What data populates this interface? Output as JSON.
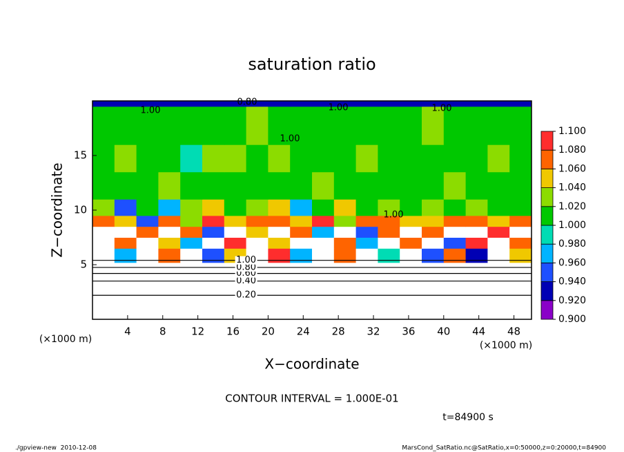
{
  "chart_data": {
    "type": "contour",
    "title": "saturation ratio",
    "xlabel": "X−coordinate",
    "ylabel": "Z−coordinate",
    "x_unit": "(×1000 m)",
    "y_unit": "(×1000 m)",
    "xlim": [
      0,
      50
    ],
    "ylim": [
      0,
      20
    ],
    "xticks": [
      4,
      8,
      12,
      16,
      20,
      24,
      28,
      32,
      36,
      40,
      44,
      48
    ],
    "yticks": [
      5,
      10,
      15
    ],
    "field": {
      "x_edges": [
        0,
        2.5,
        5,
        7.5,
        10,
        12.5,
        15,
        17.5,
        20,
        22.5,
        25,
        27.5,
        30,
        32.5,
        35,
        37.5,
        40,
        42.5,
        45,
        47.5,
        50
      ],
      "z_edges": [
        0,
        1.5,
        3,
        4.5,
        5.2,
        6.5,
        7.5,
        8.5,
        9.5,
        11,
        13.5,
        16,
        19.5,
        20
      ],
      "values": [
        [
          0.1,
          0.1,
          0.1,
          0.1,
          0.1,
          0.1,
          0.1,
          0.1,
          0.1,
          0.1,
          0.1,
          0.1,
          0.1,
          0.1,
          0.1,
          0.1,
          0.1,
          0.1,
          0.1,
          0.1
        ],
        [
          0.3,
          0.3,
          0.3,
          0.3,
          0.3,
          0.3,
          0.3,
          0.3,
          0.3,
          0.3,
          0.3,
          0.3,
          0.3,
          0.3,
          0.3,
          0.3,
          0.3,
          0.3,
          0.3,
          0.3
        ],
        [
          0.55,
          0.55,
          0.55,
          0.55,
          0.55,
          0.55,
          0.55,
          0.55,
          0.55,
          0.55,
          0.55,
          0.55,
          0.55,
          0.55,
          0.55,
          0.55,
          0.55,
          0.55,
          0.55,
          0.55
        ],
        [
          0.85,
          0.85,
          0.85,
          0.85,
          0.85,
          0.85,
          0.85,
          0.85,
          0.85,
          0.85,
          0.85,
          0.85,
          0.85,
          0.85,
          0.85,
          0.85,
          0.85,
          0.85,
          0.85,
          0.85
        ],
        [
          1.12,
          0.97,
          1.12,
          1.07,
          1.12,
          0.95,
          1.05,
          1.12,
          1.08,
          0.96,
          1.12,
          1.06,
          1.12,
          0.98,
          1.12,
          0.95,
          1.07,
          0.93,
          1.12,
          1.05
        ],
        [
          1.12,
          1.07,
          1.12,
          1.05,
          0.97,
          1.12,
          1.08,
          1.12,
          1.04,
          1.12,
          1.12,
          1.07,
          0.96,
          1.12,
          1.06,
          1.12,
          0.94,
          1.08,
          1.12,
          1.07
        ],
        [
          1.12,
          1.12,
          1.06,
          1.12,
          1.07,
          0.95,
          1.12,
          1.05,
          1.12,
          1.07,
          0.97,
          1.12,
          0.95,
          1.06,
          1.12,
          1.07,
          1.12,
          1.12,
          1.08,
          1.12
        ],
        [
          1.07,
          1.05,
          0.95,
          1.06,
          1.03,
          1.08,
          1.04,
          1.06,
          1.07,
          1.05,
          1.08,
          1.03,
          1.06,
          1.07,
          1.05,
          1.04,
          1.07,
          1.06,
          1.05,
          1.07
        ],
        [
          1.03,
          0.95,
          1.01,
          0.96,
          1.02,
          1.04,
          1.01,
          1.02,
          1.05,
          0.97,
          1.01,
          1.04,
          1.01,
          1.03,
          1.01,
          1.02,
          1.01,
          1.03,
          1.01,
          1.01
        ],
        [
          1.01,
          1.01,
          1.01,
          1.03,
          1.01,
          1.01,
          1.01,
          1.01,
          1.01,
          1.01,
          1.03,
          1.01,
          1.01,
          1.01,
          1.01,
          1.01,
          1.03,
          1.01,
          1.01,
          1.01
        ],
        [
          1.01,
          1.03,
          1.01,
          1.01,
          0.99,
          1.03,
          1.03,
          1.01,
          1.03,
          1.01,
          1.01,
          1.01,
          1.03,
          1.01,
          1.01,
          1.01,
          1.01,
          1.01,
          1.03,
          1.01
        ],
        [
          1.01,
          1.01,
          1.01,
          1.01,
          1.01,
          1.01,
          1.01,
          1.03,
          1.01,
          1.01,
          1.01,
          1.01,
          1.01,
          1.01,
          1.01,
          1.03,
          1.01,
          1.01,
          1.01,
          1.01
        ],
        [
          0.93,
          0.93,
          0.93,
          0.93,
          0.93,
          0.93,
          0.93,
          0.93,
          0.93,
          0.93,
          0.93,
          0.93,
          0.93,
          0.93,
          0.93,
          0.93,
          0.93,
          0.93,
          0.93,
          0.93
        ]
      ]
    },
    "levels": [
      {
        "value": 0.9,
        "label": "0.900"
      },
      {
        "value": 0.92,
        "label": "0.920"
      },
      {
        "value": 0.94,
        "label": "0.940"
      },
      {
        "value": 0.96,
        "label": "0.960"
      },
      {
        "value": 0.98,
        "label": "0.980"
      },
      {
        "value": 1.0,
        "label": "1.000"
      },
      {
        "value": 1.02,
        "label": "1.020"
      },
      {
        "value": 1.04,
        "label": "1.040"
      },
      {
        "value": 1.06,
        "label": "1.060"
      },
      {
        "value": 1.08,
        "label": "1.080"
      },
      {
        "value": 1.1,
        "label": "1.100"
      }
    ],
    "colors": [
      "#8a00c8",
      "#0000b4",
      "#1e50ff",
      "#00b4ff",
      "#00dcb4",
      "#00c800",
      "#8cdc00",
      "#f0c800",
      "#ff6400",
      "#ff2d2d"
    ],
    "contours": [
      {
        "level": {
          "value": 0.2,
          "label": "0.20"
        },
        "z": 2.2
      },
      {
        "level": {
          "value": 0.4,
          "label": "0.40"
        },
        "z": 3.5
      },
      {
        "level": {
          "value": 0.6,
          "label": "0.60"
        },
        "z": 4.2
      },
      {
        "level": {
          "value": 0.8,
          "label": "0.80"
        },
        "z": 4.75
      },
      {
        "level": {
          "value": 1.0,
          "label": "1.00"
        },
        "z": 5.4
      }
    ],
    "contour_labels": [
      "1.00",
      "0.80",
      "1.00",
      "1.00",
      "1.00",
      "1.00"
    ],
    "interval_text": "CONTOUR INTERVAL = 1.000E-01",
    "time_text": "t=84900 s",
    "footer_left": "./gpview-new  2010-12-08",
    "footer_right": "MarsCond_SatRatio.nc@SatRatio,x=0:50000,z=0:20000,t=84900"
  }
}
